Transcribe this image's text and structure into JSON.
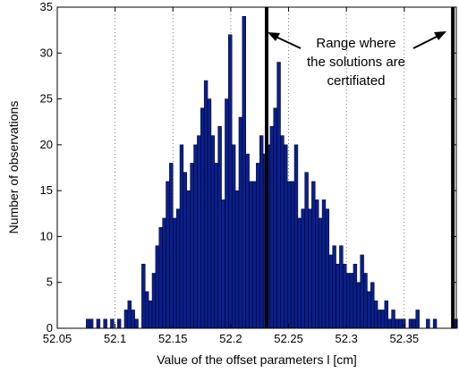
{
  "chart_data": {
    "type": "bar",
    "xlabel": "Value of the offset parameters l [cm]",
    "ylabel": "Number of observations",
    "xlim": [
      52.05,
      52.395
    ],
    "ylim": [
      0,
      35
    ],
    "xticks": [
      "52.05",
      "52.1",
      "52.15",
      "52.2",
      "52.25",
      "52.3",
      "52.35"
    ],
    "xtick_values": [
      52.05,
      52.1,
      52.15,
      52.2,
      52.25,
      52.3,
      52.35
    ],
    "yticks": [
      "0",
      "5",
      "10",
      "15",
      "20",
      "25",
      "30",
      "35"
    ],
    "ytick_values": [
      0,
      5,
      10,
      15,
      20,
      25,
      30,
      35
    ],
    "grid": "dotted vertical",
    "bar_color": "#0a1f8f",
    "bar_edge_color": "#000000",
    "bin_width": 0.003,
    "bin_starts": [
      52.075,
      52.078,
      52.081,
      52.084,
      52.087,
      52.09,
      52.093,
      52.096,
      52.099,
      52.102,
      52.105,
      52.108,
      52.111,
      52.114,
      52.117,
      52.12,
      52.123,
      52.126,
      52.129,
      52.132,
      52.135,
      52.138,
      52.141,
      52.144,
      52.147,
      52.15,
      52.153,
      52.156,
      52.159,
      52.162,
      52.165,
      52.168,
      52.171,
      52.174,
      52.177,
      52.18,
      52.183,
      52.186,
      52.189,
      52.192,
      52.195,
      52.198,
      52.201,
      52.204,
      52.207,
      52.21,
      52.213,
      52.216,
      52.219,
      52.222,
      52.225,
      52.228,
      52.231,
      52.234,
      52.237,
      52.24,
      52.243,
      52.246,
      52.249,
      52.252,
      52.255,
      52.258,
      52.261,
      52.264,
      52.267,
      52.27,
      52.273,
      52.276,
      52.279,
      52.282,
      52.285,
      52.288,
      52.291,
      52.294,
      52.297,
      52.3,
      52.303,
      52.306,
      52.309,
      52.312,
      52.315,
      52.318,
      52.321,
      52.324,
      52.327,
      52.33,
      52.333,
      52.336,
      52.339,
      52.342,
      52.345,
      52.348,
      52.351,
      52.354,
      52.357,
      52.36,
      52.363,
      52.366,
      52.369,
      52.372,
      52.375,
      52.378,
      52.381,
      52.384,
      52.387,
      52.39,
      52.393
    ],
    "values": [
      1,
      1,
      0,
      1,
      0,
      1,
      0,
      1,
      0,
      1,
      0,
      2,
      3,
      2,
      1,
      0,
      7,
      4,
      3,
      6,
      9,
      11,
      12,
      16,
      18,
      12,
      13,
      20,
      17,
      15,
      18,
      20,
      21,
      24,
      27,
      25,
      21,
      18,
      22,
      14,
      25,
      32,
      20,
      15,
      23,
      34,
      19,
      16,
      16,
      18,
      21,
      19,
      20,
      22,
      24,
      29,
      21,
      20,
      16,
      16,
      20,
      12,
      13,
      17,
      13,
      16,
      14,
      12,
      14,
      13,
      8,
      9,
      7,
      9,
      7,
      6,
      6,
      7,
      5,
      8,
      6,
      4,
      5,
      3,
      2,
      2,
      3,
      1,
      2,
      1,
      1,
      1,
      0,
      1,
      1,
      2,
      0,
      0,
      1,
      0,
      1,
      0,
      0,
      0,
      0,
      0,
      1
    ],
    "vlines": [
      52.231,
      52.392
    ],
    "vline_color": "#000000",
    "annotation": {
      "lines": [
        "Range where",
        "the solutions are",
        "certifiated"
      ]
    }
  }
}
